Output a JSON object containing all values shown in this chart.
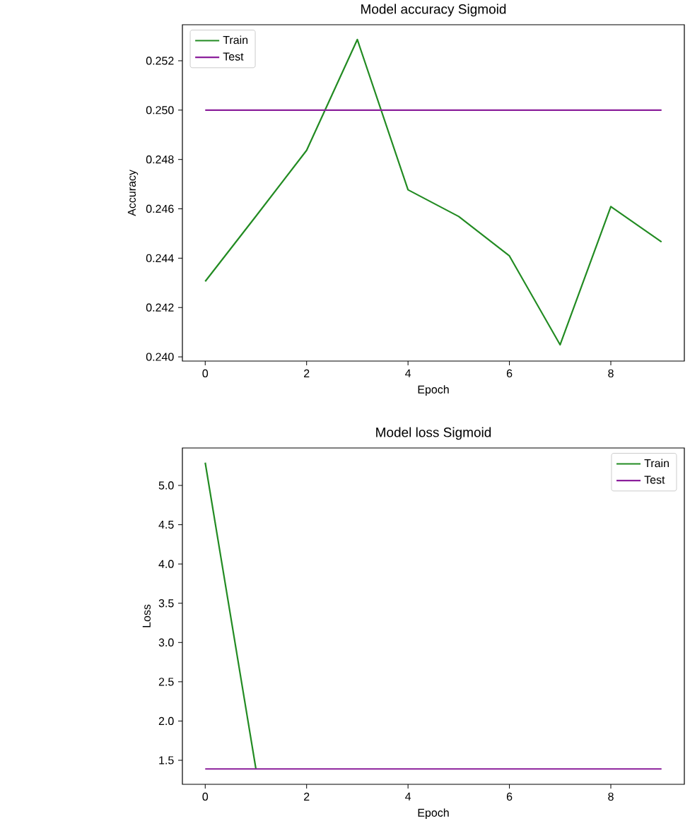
{
  "chart_data": [
    {
      "type": "line",
      "title": "Model accuracy Sigmoid",
      "xlabel": "Epoch",
      "ylabel": "Accuracy",
      "x": [
        0,
        1,
        2,
        3,
        4,
        5,
        6,
        7,
        8,
        9
      ],
      "series": [
        {
          "name": "Train",
          "color": "#228b22",
          "values": [
            0.24306,
            0.2457,
            0.24837,
            0.25286,
            0.24677,
            0.24569,
            0.24409,
            0.24049,
            0.24609,
            0.24466
          ]
        },
        {
          "name": "Test",
          "color": "#8b1f9b",
          "values": [
            0.25,
            0.25,
            0.25,
            0.25,
            0.25,
            0.25,
            0.25,
            0.25,
            0.25,
            0.25
          ]
        }
      ],
      "xlim": [
        -0.45,
        9.45
      ],
      "ylim": [
        0.23983,
        0.25346
      ],
      "xticks": [
        0,
        2,
        4,
        6,
        8
      ],
      "yticks": [
        {
          "value": 0.24,
          "label": "0.240"
        },
        0.242,
        0.244,
        0.246,
        0.248,
        {
          "value": 0.25,
          "label": "0.250"
        },
        0.252
      ],
      "legend": "top left",
      "grid": false
    },
    {
      "type": "line",
      "title": "Model loss Sigmoid",
      "xlabel": "Epoch",
      "ylabel": "Loss",
      "x": [
        0,
        1,
        2,
        3,
        4,
        5,
        6,
        7,
        8,
        9
      ],
      "series": [
        {
          "name": "Train",
          "color": "#228b22",
          "values": [
            5.29,
            1.39,
            null,
            null,
            null,
            null,
            null,
            null,
            null,
            null
          ]
        },
        {
          "name": "Test",
          "color": "#8b1f9b",
          "values": [
            1.39,
            1.39,
            1.39,
            1.39,
            1.39,
            1.39,
            1.39,
            1.39,
            1.39,
            1.39
          ]
        }
      ],
      "xlim": [
        -0.45,
        9.45
      ],
      "ylim": [
        1.194,
        5.477
      ],
      "xticks": [
        0,
        2,
        4,
        6,
        8
      ],
      "yticks": [
        1.5,
        {
          "value": 2,
          "label": "2.0"
        },
        2.5,
        {
          "value": 3,
          "label": "3.0"
        },
        3.5,
        {
          "value": 4,
          "label": "4.0"
        },
        4.5,
        {
          "value": 5,
          "label": "5.0"
        }
      ],
      "legend": "top right",
      "grid": false
    }
  ]
}
